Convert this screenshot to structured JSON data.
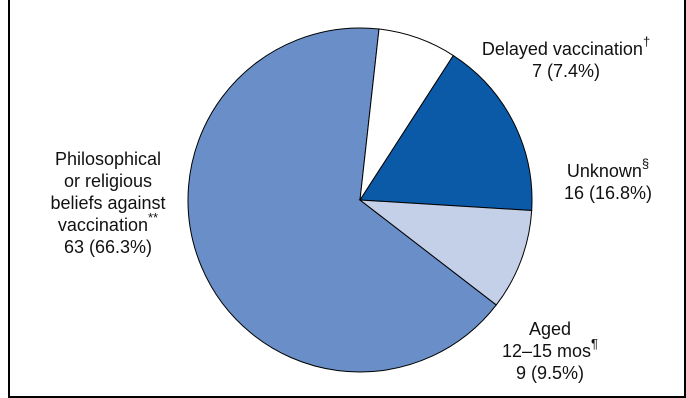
{
  "chart_data": {
    "type": "pie",
    "title": "",
    "slices": [
      {
        "label": "Philosophical or religious beliefs against vaccination",
        "marker": "**",
        "value": 63,
        "percent": 66.3,
        "value_label": "63 (66.3%)",
        "color": "#6a8fc8"
      },
      {
        "label": "Delayed vaccination",
        "marker": "†",
        "value": 7,
        "percent": 7.4,
        "value_label": "7 (7.4%)",
        "color": "#ffffff"
      },
      {
        "label": "Unknown",
        "marker": "§",
        "value": 16,
        "percent": 16.8,
        "value_label": "16 (16.8%)",
        "color": "#0a5aa8"
      },
      {
        "label": "Aged 12–15 mos",
        "marker": "¶",
        "value": 9,
        "percent": 9.5,
        "value_label": "9 (9.5%)",
        "color": "#c4cfe8"
      }
    ]
  }
}
